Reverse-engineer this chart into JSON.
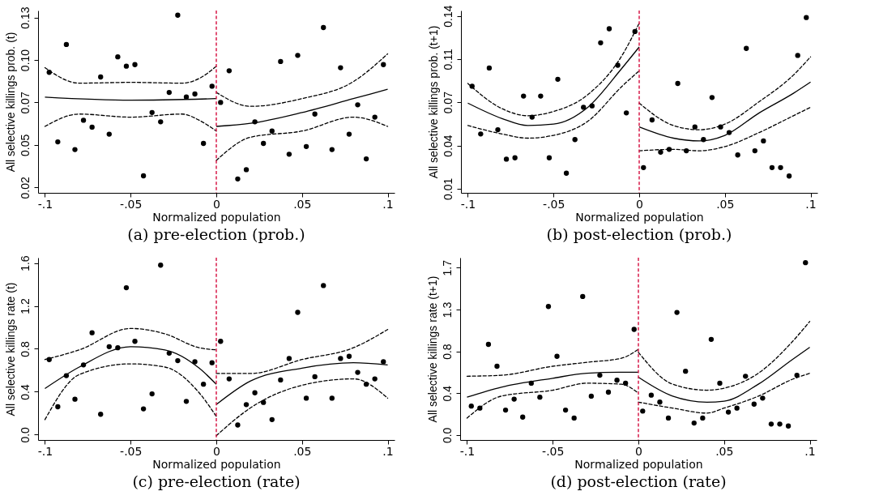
{
  "chart_data": [
    {
      "type": "scatter",
      "title": "(a) pre-election (prob.)",
      "xlabel": "Normalized population",
      "ylabel": "All selective killings prob. (t)",
      "grid": false,
      "xlim": [
        -0.104,
        0.104
      ],
      "xticks": [
        {
          "value": -0.1,
          "label": "-.1"
        },
        {
          "value": -0.05,
          "label": "-.05"
        },
        0,
        {
          "value": 0.05,
          "label": ".05"
        },
        {
          "value": 0.1,
          "label": ".1"
        }
      ],
      "ylim": [
        0.016,
        0.134
      ],
      "yticks": [
        {
          "value": 0.0195,
          "label": "0.02"
        },
        {
          "value": 0.047,
          "label": "0.05"
        },
        {
          "value": 0.0745,
          "label": "0.07"
        },
        {
          "value": 0.102,
          "label": "0.10"
        },
        {
          "value": 0.1295,
          "label": "0.13"
        }
      ],
      "ref_lines": [
        {
          "axis": "x",
          "value": 0,
          "color": "#d81b4a",
          "line_style": "dashed"
        }
      ],
      "series": [
        {
          "marker": "circle",
          "color": "#000000",
          "x": [
            -0.0975,
            -0.0925,
            -0.0875,
            -0.0825,
            -0.0775,
            -0.0725,
            -0.0675,
            -0.0625,
            -0.0575,
            -0.0525,
            -0.0475,
            -0.0425,
            -0.0375,
            -0.0325,
            -0.0275,
            -0.0225,
            -0.0175,
            -0.0125,
            -0.0075,
            -0.0025,
            0.0025,
            0.0075,
            0.0125,
            0.0175,
            0.0225,
            0.0275,
            0.0325,
            0.0375,
            0.0425,
            0.0475,
            0.0525,
            0.0575,
            0.0625,
            0.0675,
            0.0725,
            0.0775,
            0.0825,
            0.0875,
            0.0925,
            0.0975
          ],
          "values": [
            0.094,
            0.049,
            0.112,
            0.044,
            0.063,
            0.0585,
            0.091,
            0.054,
            0.104,
            0.098,
            0.099,
            0.027,
            0.068,
            0.062,
            0.081,
            0.131,
            0.078,
            0.08,
            0.048,
            0.085,
            0.0745,
            0.095,
            0.025,
            0.031,
            0.062,
            0.048,
            0.056,
            0.101,
            0.041,
            0.105,
            0.046,
            0.067,
            0.123,
            0.044,
            0.097,
            0.054,
            0.073,
            0.038,
            0.065,
            0.099
          ]
        },
        {
          "type": "line",
          "line_style": "solid",
          "color": "#000000",
          "x": [
            -0.1,
            -0.05,
            0
          ],
          "values": [
            0.078,
            0.076,
            0.077
          ]
        },
        {
          "type": "line",
          "line_style": "dashed",
          "color": "#000000",
          "x": [
            -0.1,
            -0.08,
            -0.05,
            -0.02,
            -0.01,
            0
          ],
          "values": [
            0.097,
            0.087,
            0.0875,
            0.087,
            0.09,
            0.098
          ]
        },
        {
          "type": "line",
          "line_style": "dashed",
          "color": "#000000",
          "x": [
            -0.1,
            -0.08,
            -0.05,
            -0.02,
            -0.01,
            0
          ],
          "values": [
            0.059,
            0.067,
            0.065,
            0.067,
            0.063,
            0.056
          ]
        },
        {
          "type": "line",
          "line_style": "solid",
          "color": "#000000",
          "x": [
            0,
            0.02,
            0.05,
            0.08,
            0.1
          ],
          "values": [
            0.059,
            0.061,
            0.068,
            0.077,
            0.083
          ]
        },
        {
          "type": "line",
          "line_style": "dashed",
          "color": "#000000",
          "x": [
            0,
            0.02,
            0.05,
            0.08,
            0.1
          ],
          "values": [
            0.081,
            0.072,
            0.077,
            0.088,
            0.106
          ]
        },
        {
          "type": "line",
          "line_style": "dashed",
          "color": "#000000",
          "x": [
            0,
            0.02,
            0.05,
            0.08,
            0.1
          ],
          "values": [
            0.037,
            0.052,
            0.056,
            0.065,
            0.059
          ]
        }
      ]
    },
    {
      "type": "scatter",
      "title": "(b) post-election (prob.)",
      "xlabel": "Normalized population",
      "ylabel": "All selective killings prob. (t+1)",
      "grid": false,
      "xlim": [
        -0.104,
        0.104
      ],
      "xticks": [
        {
          "value": -0.1,
          "label": "-.1"
        },
        {
          "value": -0.05,
          "label": "-.05"
        },
        0,
        {
          "value": 0.05,
          "label": ".05"
        },
        {
          "value": 0.1,
          "label": ".1"
        }
      ],
      "ylim": [
        0.01,
        0.14
      ],
      "yticks": [
        {
          "value": 0.013,
          "label": "0.01"
        },
        {
          "value": 0.0438,
          "label": "0.04"
        },
        {
          "value": 0.0746,
          "label": "0.07"
        },
        {
          "value": 0.1054,
          "label": "0.11"
        },
        {
          "value": 0.1362,
          "label": "0.14"
        }
      ],
      "ref_lines": [
        {
          "axis": "x",
          "value": 0,
          "color": "#d81b4a",
          "line_style": "dashed"
        }
      ],
      "series": [
        {
          "marker": "circle",
          "color": "#000000",
          "x": [
            -0.0975,
            -0.0925,
            -0.0875,
            -0.0825,
            -0.0775,
            -0.0725,
            -0.0675,
            -0.0625,
            -0.0575,
            -0.0525,
            -0.0475,
            -0.0425,
            -0.0375,
            -0.0325,
            -0.0275,
            -0.0225,
            -0.0175,
            -0.0125,
            -0.0075,
            -0.0025,
            0.0025,
            0.0075,
            0.0125,
            0.0175,
            0.0225,
            0.0275,
            0.0325,
            0.0375,
            0.0425,
            0.0475,
            0.0525,
            0.0575,
            0.0625,
            0.0675,
            0.0725,
            0.0775,
            0.0825,
            0.0875,
            0.0925,
            0.0975
          ],
          "values": [
            0.086,
            0.052,
            0.099,
            0.055,
            0.034,
            0.035,
            0.079,
            0.064,
            0.079,
            0.035,
            0.091,
            0.024,
            0.048,
            0.071,
            0.072,
            0.117,
            0.127,
            0.101,
            0.067,
            0.125,
            0.028,
            0.062,
            0.039,
            0.041,
            0.088,
            0.04,
            0.057,
            0.048,
            0.078,
            0.057,
            0.053,
            0.037,
            0.113,
            0.04,
            0.047,
            0.028,
            0.028,
            0.022,
            0.108,
            0.135
          ]
        },
        {
          "type": "line",
          "line_style": "solid",
          "color": "#000000",
          "x": [
            -0.1,
            -0.08,
            -0.065,
            -0.05,
            -0.03,
            -0.01,
            0
          ],
          "values": [
            0.074,
            0.063,
            0.058,
            0.059,
            0.071,
            0.099,
            0.114
          ]
        },
        {
          "type": "line",
          "line_style": "dashed",
          "color": "#000000",
          "x": [
            -0.1,
            -0.08,
            -0.065,
            -0.05,
            -0.03,
            -0.01,
            0
          ],
          "values": [
            0.088,
            0.07,
            0.065,
            0.068,
            0.08,
            0.108,
            0.131
          ]
        },
        {
          "type": "line",
          "line_style": "dashed",
          "color": "#000000",
          "x": [
            -0.1,
            -0.08,
            -0.065,
            -0.05,
            -0.03,
            -0.01,
            0
          ],
          "values": [
            0.058,
            0.052,
            0.049,
            0.051,
            0.061,
            0.086,
            0.097
          ]
        },
        {
          "type": "line",
          "line_style": "solid",
          "color": "#000000",
          "x": [
            0,
            0.02,
            0.035,
            0.05,
            0.07,
            0.09,
            0.1
          ],
          "values": [
            0.057,
            0.049,
            0.047,
            0.051,
            0.067,
            0.081,
            0.089
          ]
        },
        {
          "type": "line",
          "line_style": "dashed",
          "color": "#000000",
          "x": [
            0,
            0.02,
            0.035,
            0.05,
            0.07,
            0.09,
            0.1
          ],
          "values": [
            0.074,
            0.058,
            0.055,
            0.059,
            0.075,
            0.094,
            0.107
          ]
        },
        {
          "type": "line",
          "line_style": "dashed",
          "color": "#000000",
          "x": [
            0,
            0.02,
            0.035,
            0.05,
            0.07,
            0.09,
            0.1
          ],
          "values": [
            0.04,
            0.041,
            0.04,
            0.043,
            0.053,
            0.065,
            0.071
          ]
        }
      ]
    },
    {
      "type": "scatter",
      "title": "(c) pre-election (rate)",
      "xlabel": "Normalized population",
      "ylabel": "All selective killings rate (t)",
      "grid": false,
      "xlim": [
        -0.104,
        0.104
      ],
      "xticks": [
        {
          "value": -0.1,
          "label": "-.1"
        },
        {
          "value": -0.05,
          "label": "-.05"
        },
        0,
        {
          "value": 0.05,
          "label": ".05"
        },
        {
          "value": 0.1,
          "label": ".1"
        }
      ],
      "ylim": [
        -0.05,
        1.65
      ],
      "yticks": [
        {
          "value": 0,
          "label": "0.0"
        },
        0.4,
        0.8,
        1.2,
        1.6
      ],
      "ref_lines": [
        {
          "axis": "x",
          "value": 0,
          "color": "#d81b4a",
          "line_style": "dashed"
        }
      ],
      "series": [
        {
          "marker": "circle",
          "color": "#000000",
          "x": [
            -0.0975,
            -0.0925,
            -0.0875,
            -0.0825,
            -0.0775,
            -0.0725,
            -0.0675,
            -0.0625,
            -0.0575,
            -0.0525,
            -0.0475,
            -0.0425,
            -0.0375,
            -0.0325,
            -0.0275,
            -0.0225,
            -0.0175,
            -0.0125,
            -0.0075,
            -0.0025,
            0.0025,
            0.0075,
            0.0125,
            0.0175,
            0.0225,
            0.0275,
            0.0325,
            0.0375,
            0.0425,
            0.0475,
            0.0525,
            0.0575,
            0.0625,
            0.0675,
            0.0725,
            0.0775,
            0.0825,
            0.0875,
            0.0925,
            0.0975
          ],
          "values": [
            0.7,
            0.26,
            0.55,
            0.33,
            0.65,
            0.95,
            0.19,
            0.82,
            0.81,
            1.37,
            0.87,
            0.24,
            0.38,
            1.58,
            0.76,
            0.69,
            0.31,
            0.68,
            0.47,
            0.67,
            0.87,
            0.52,
            0.09,
            0.28,
            0.39,
            0.3,
            0.14,
            0.51,
            0.71,
            1.14,
            0.34,
            0.54,
            1.39,
            0.34,
            0.71,
            0.73,
            0.58,
            0.47,
            0.52,
            0.68
          ]
        },
        {
          "type": "line",
          "line_style": "solid",
          "color": "#000000",
          "x": [
            -0.1,
            -0.08,
            -0.05,
            -0.03,
            -0.01,
            0
          ],
          "values": [
            0.43,
            0.63,
            0.82,
            0.79,
            0.62,
            0.47
          ]
        },
        {
          "type": "line",
          "line_style": "dashed",
          "color": "#000000",
          "x": [
            -0.1,
            -0.08,
            -0.05,
            -0.03,
            -0.01,
            0
          ],
          "values": [
            0.7,
            0.79,
            0.99,
            0.94,
            0.81,
            0.79
          ]
        },
        {
          "type": "line",
          "line_style": "dashed",
          "color": "#000000",
          "x": [
            -0.1,
            -0.08,
            -0.05,
            -0.03,
            -0.01,
            0
          ],
          "values": [
            0.14,
            0.56,
            0.66,
            0.63,
            0.39,
            0.17
          ]
        },
        {
          "type": "line",
          "line_style": "solid",
          "color": "#000000",
          "x": [
            0,
            0.02,
            0.05,
            0.08,
            0.1
          ],
          "values": [
            0.28,
            0.5,
            0.62,
            0.67,
            0.65
          ]
        },
        {
          "type": "line",
          "line_style": "dashed",
          "color": "#000000",
          "x": [
            0,
            0.02,
            0.05,
            0.08,
            0.1
          ],
          "values": [
            0.57,
            0.57,
            0.7,
            0.81,
            0.98
          ]
        },
        {
          "type": "line",
          "line_style": "dashed",
          "color": "#000000",
          "x": [
            0,
            0.02,
            0.05,
            0.08,
            0.1
          ],
          "values": [
            -0.01,
            0.25,
            0.46,
            0.52,
            0.34
          ]
        }
      ]
    },
    {
      "type": "scatter",
      "title": "(d) post-election (rate)",
      "xlabel": "Normalized population",
      "ylabel": "All selective killings rate (t+1)",
      "grid": false,
      "xlim": [
        -0.104,
        0.104
      ],
      "xticks": [
        {
          "value": -0.1,
          "label": "-.1"
        },
        {
          "value": -0.05,
          "label": "-.05"
        },
        0,
        {
          "value": 0.05,
          "label": ".05"
        },
        {
          "value": 0.1,
          "label": ".1"
        }
      ],
      "ylim": [
        -0.05,
        1.78
      ],
      "yticks": [
        {
          "value": 0,
          "label": "0.0"
        },
        {
          "value": 0.42,
          "label": "0.4"
        },
        {
          "value": 0.84,
          "label": "0.8"
        },
        {
          "value": 1.26,
          "label": "1.3"
        },
        {
          "value": 1.68,
          "label": "1.7"
        }
      ],
      "ref_lines": [
        {
          "axis": "x",
          "value": 0,
          "color": "#d81b4a",
          "line_style": "dashed"
        }
      ],
      "series": [
        {
          "marker": "circle",
          "color": "#000000",
          "x": [
            -0.0975,
            -0.0925,
            -0.0875,
            -0.0825,
            -0.0775,
            -0.0725,
            -0.0675,
            -0.0625,
            -0.0575,
            -0.0525,
            -0.0475,
            -0.0425,
            -0.0375,
            -0.0325,
            -0.0275,
            -0.0225,
            -0.0175,
            -0.0125,
            -0.0075,
            -0.0025,
            0.0025,
            0.0075,
            0.0125,
            0.0175,
            0.0225,
            0.0275,
            0.0325,
            0.0375,
            0.0425,
            0.0475,
            0.0525,
            0.0575,
            0.0625,
            0.0675,
            0.0725,
            0.0775,
            0.0825,
            0.0875,
            0.0925,
            0.0975
          ],
          "values": [
            0.29,
            0.27,
            0.91,
            0.69,
            0.25,
            0.36,
            0.18,
            0.52,
            0.38,
            1.29,
            0.79,
            0.25,
            0.17,
            1.39,
            0.39,
            0.6,
            0.43,
            0.55,
            0.52,
            1.06,
            0.24,
            0.4,
            0.33,
            0.17,
            1.23,
            0.64,
            0.12,
            0.17,
            0.96,
            0.52,
            0.23,
            0.27,
            0.59,
            0.31,
            0.37,
            0.11,
            0.11,
            0.09,
            0.6,
            1.73
          ]
        },
        {
          "type": "line",
          "line_style": "solid",
          "color": "#000000",
          "x": [
            -0.1,
            -0.08,
            -0.05,
            -0.03,
            -0.01,
            0
          ],
          "values": [
            0.38,
            0.48,
            0.57,
            0.62,
            0.63,
            0.63
          ]
        },
        {
          "type": "line",
          "line_style": "dashed",
          "color": "#000000",
          "x": [
            -0.1,
            -0.08,
            -0.05,
            -0.03,
            -0.01,
            0
          ],
          "values": [
            0.59,
            0.6,
            0.69,
            0.73,
            0.77,
            0.86
          ]
        },
        {
          "type": "line",
          "line_style": "dashed",
          "color": "#000000",
          "x": [
            -0.1,
            -0.08,
            -0.05,
            -0.03,
            -0.01,
            0
          ],
          "values": [
            0.17,
            0.39,
            0.45,
            0.52,
            0.51,
            0.42
          ]
        },
        {
          "type": "line",
          "line_style": "solid",
          "color": "#000000",
          "x": [
            0,
            0.02,
            0.04,
            0.05,
            0.07,
            0.09,
            0.1
          ],
          "values": [
            0.58,
            0.39,
            0.33,
            0.34,
            0.51,
            0.76,
            0.88
          ]
        },
        {
          "type": "line",
          "line_style": "dashed",
          "color": "#000000",
          "x": [
            0,
            0.02,
            0.04,
            0.05,
            0.07,
            0.09,
            0.1
          ],
          "values": [
            0.83,
            0.51,
            0.45,
            0.47,
            0.62,
            0.94,
            1.14
          ]
        },
        {
          "type": "line",
          "line_style": "dashed",
          "color": "#000000",
          "x": [
            0,
            0.02,
            0.04,
            0.05,
            0.07,
            0.09,
            0.1
          ],
          "values": [
            0.33,
            0.27,
            0.22,
            0.27,
            0.39,
            0.56,
            0.62
          ]
        }
      ]
    }
  ]
}
